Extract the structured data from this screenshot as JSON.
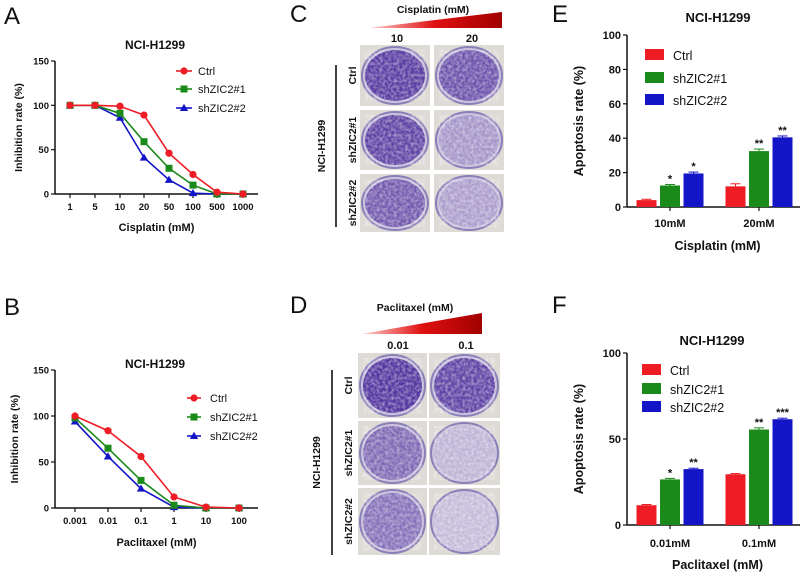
{
  "panel_letters": [
    "A",
    "B",
    "C",
    "D",
    "E",
    "F"
  ],
  "colors": {
    "ctrl": "#ee1c24",
    "sh1": "#1a8a1a",
    "sh2": "#1515c8",
    "wedge_light": "#ffd0d0",
    "wedge_dark": "#a00000",
    "stain": "#4b2c9a"
  },
  "chart_data": [
    {
      "type": "line",
      "panel": "A",
      "title": "NCI-H1299",
      "xlabel": "Cisplatin (mM)",
      "ylabel": "Inhibition rate (%)",
      "categories": [
        "1",
        "5",
        "10",
        "20",
        "50",
        "100",
        "500",
        "1000"
      ],
      "ylim": [
        0,
        150
      ],
      "yticks": [
        0,
        50,
        100,
        150
      ],
      "legend": "top-right",
      "series": [
        {
          "name": "Ctrl",
          "marker": "circle",
          "values": [
            100,
            100,
            99,
            89,
            46,
            22,
            2,
            0
          ]
        },
        {
          "name": "shZIC2#1",
          "marker": "square",
          "values": [
            100,
            100,
            91,
            59,
            29,
            10,
            0,
            0
          ]
        },
        {
          "name": "shZIC2#2",
          "marker": "triangle",
          "values": [
            100,
            100,
            86,
            41,
            16,
            1,
            0,
            0
          ]
        }
      ]
    },
    {
      "type": "line",
      "panel": "B",
      "title": "NCI-H1299",
      "xlabel": "Paclitaxel (mM)",
      "ylabel": "Inhibition rate (%)",
      "categories": [
        "0.001",
        "0.01",
        "0.1",
        "1",
        "10",
        "100"
      ],
      "ylim": [
        0,
        150
      ],
      "yticks": [
        0,
        50,
        100,
        150
      ],
      "legend": "right",
      "series": [
        {
          "name": "Ctrl",
          "marker": "circle",
          "values": [
            100,
            84,
            56,
            12,
            1,
            0
          ]
        },
        {
          "name": "shZIC2#1",
          "marker": "square",
          "values": [
            98,
            65,
            30,
            3,
            0,
            0
          ]
        },
        {
          "name": "shZIC2#2",
          "marker": "triangle",
          "values": [
            94,
            56,
            21,
            1,
            0,
            0
          ]
        }
      ]
    },
    {
      "type": "bar",
      "panel": "E",
      "title": "NCI-H1299",
      "xlabel": "Cisplatin (mM)",
      "ylabel": "Apoptosis rate (%)",
      "categories": [
        "10mM",
        "20mM"
      ],
      "ylim": [
        0,
        100
      ],
      "yticks": [
        0,
        20,
        40,
        60,
        80,
        100
      ],
      "legend": "top-left",
      "series": [
        {
          "name": "Ctrl",
          "values": [
            4,
            12
          ],
          "errors": [
            0.5,
            1.5
          ],
          "sig": [
            "",
            ""
          ]
        },
        {
          "name": "shZIC2#1",
          "values": [
            12.5,
            32.5
          ],
          "errors": [
            0.6,
            1.2
          ],
          "sig": [
            "*",
            "**"
          ]
        },
        {
          "name": "shZIC2#2",
          "values": [
            19.5,
            40.5
          ],
          "errors": [
            0.8,
            0.8
          ],
          "sig": [
            "*",
            "**"
          ]
        }
      ]
    },
    {
      "type": "bar",
      "panel": "F",
      "title": "NCI-H1299",
      "xlabel": "Paclitaxel (mM)",
      "ylabel": "Apoptosis rate (%)",
      "categories": [
        "0.01mM",
        "0.1mM"
      ],
      "ylim": [
        0,
        100
      ],
      "yticks": [
        0,
        50,
        100
      ],
      "legend": "top-left",
      "series": [
        {
          "name": "Ctrl",
          "values": [
            11.5,
            29.5
          ],
          "errors": [
            0.4,
            0.4
          ],
          "sig": [
            "",
            ""
          ]
        },
        {
          "name": "shZIC2#1",
          "values": [
            26.5,
            55.5
          ],
          "errors": [
            0.6,
            1.0
          ],
          "sig": [
            "*",
            "**"
          ]
        },
        {
          "name": "shZIC2#2",
          "values": [
            32.5,
            61.5
          ],
          "errors": [
            0.5,
            0.6
          ],
          "sig": [
            "**",
            "***"
          ]
        }
      ]
    }
  ],
  "plates": [
    {
      "panel": "C",
      "drug": "Cisplatin (mM)",
      "doses": [
        "10",
        "20"
      ],
      "cell_line": "NCI-H1299",
      "rows": [
        "Ctrl",
        "shZIC2#1",
        "shZIC2#2"
      ],
      "stain_level": [
        [
          0.9,
          0.75
        ],
        [
          0.85,
          0.3
        ],
        [
          0.7,
          0.25
        ]
      ]
    },
    {
      "panel": "D",
      "drug": "Paclitaxel (mM)",
      "doses": [
        "0.01",
        "0.1"
      ],
      "cell_line": "NCI-H1299",
      "rows": [
        "Ctrl",
        "shZIC2#1",
        "shZIC2#2"
      ],
      "stain_level": [
        [
          0.95,
          0.85
        ],
        [
          0.6,
          0.1
        ],
        [
          0.55,
          0.05
        ]
      ]
    }
  ]
}
